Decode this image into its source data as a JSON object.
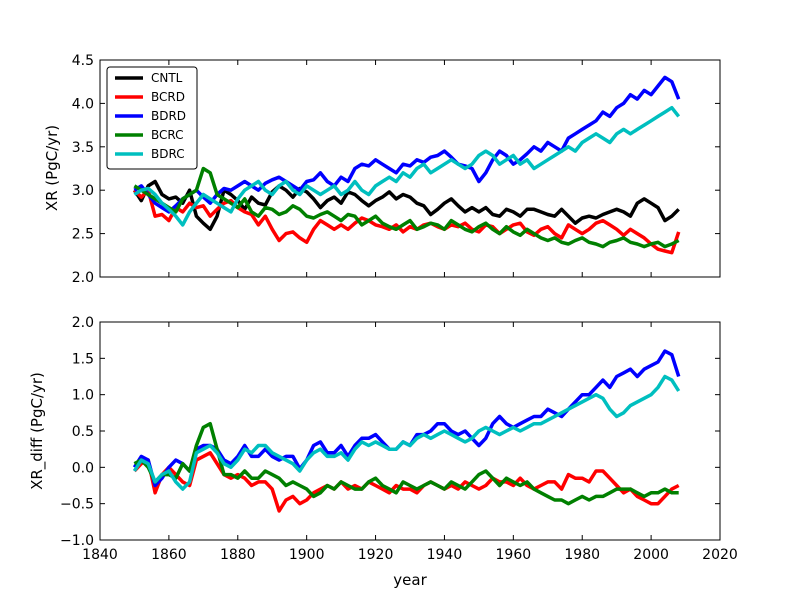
{
  "chart_data": [
    {
      "type": "line",
      "ylabel": "XR (PgC/yr)",
      "xlabel": "",
      "xlim": [
        1840,
        2020
      ],
      "ylim": [
        2.0,
        4.5
      ],
      "yticks": [
        2.0,
        2.5,
        3.0,
        3.5,
        4.0,
        4.5
      ],
      "ytick_labels": [
        "2.0",
        "2.5",
        "3.0",
        "3.5",
        "4.0",
        "4.5"
      ],
      "xticks": [],
      "xtick_labels": [],
      "legend": {
        "position": "top-left",
        "entries": [
          "CNTL",
          "BCRD",
          "BDRD",
          "BCRC",
          "BDRC"
        ]
      },
      "x_start": 1850,
      "x_step": 2,
      "series": [
        {
          "name": "CNTL",
          "color": "#000000",
          "values": [
            3.0,
            2.88,
            3.05,
            3.1,
            2.95,
            2.9,
            2.92,
            2.85,
            3.0,
            2.7,
            2.62,
            2.55,
            2.7,
            3.0,
            2.95,
            2.88,
            2.78,
            2.92,
            2.85,
            2.83,
            2.98,
            3.05,
            3.0,
            2.92,
            3.02,
            2.98,
            2.9,
            2.8,
            2.88,
            2.92,
            2.85,
            2.98,
            2.95,
            2.88,
            2.82,
            2.88,
            2.92,
            2.98,
            2.9,
            2.95,
            2.92,
            2.85,
            2.82,
            2.72,
            2.78,
            2.85,
            2.9,
            2.82,
            2.75,
            2.8,
            2.75,
            2.8,
            2.72,
            2.7,
            2.78,
            2.75,
            2.7,
            2.78,
            2.78,
            2.75,
            2.72,
            2.7,
            2.78,
            2.7,
            2.62,
            2.68,
            2.7,
            2.68,
            2.72,
            2.75,
            2.78,
            2.75,
            2.7,
            2.85,
            2.9,
            2.85,
            2.8,
            2.65,
            2.7,
            2.78
          ]
        },
        {
          "name": "BCRD",
          "color": "#ff0000",
          "values": [
            3.0,
            2.92,
            3.0,
            2.7,
            2.72,
            2.65,
            2.8,
            2.75,
            2.85,
            2.8,
            2.82,
            2.7,
            2.78,
            2.85,
            2.88,
            2.8,
            2.75,
            2.72,
            2.6,
            2.7,
            2.55,
            2.42,
            2.5,
            2.52,
            2.45,
            2.4,
            2.55,
            2.65,
            2.6,
            2.55,
            2.6,
            2.55,
            2.62,
            2.68,
            2.65,
            2.6,
            2.58,
            2.55,
            2.6,
            2.52,
            2.58,
            2.55,
            2.6,
            2.62,
            2.58,
            2.55,
            2.6,
            2.58,
            2.62,
            2.55,
            2.52,
            2.6,
            2.58,
            2.5,
            2.55,
            2.6,
            2.62,
            2.52,
            2.48,
            2.55,
            2.58,
            2.5,
            2.45,
            2.6,
            2.55,
            2.5,
            2.55,
            2.62,
            2.65,
            2.6,
            2.55,
            2.48,
            2.55,
            2.5,
            2.45,
            2.38,
            2.32,
            2.3,
            2.28,
            2.52
          ]
        },
        {
          "name": "BDRD",
          "color": "#0000ff",
          "values": [
            3.0,
            3.05,
            2.95,
            2.85,
            2.8,
            2.75,
            2.82,
            2.9,
            2.95,
            3.0,
            2.92,
            2.85,
            2.95,
            3.02,
            3.0,
            3.05,
            3.1,
            3.05,
            3.0,
            3.08,
            3.12,
            3.15,
            3.1,
            3.05,
            3.0,
            3.1,
            3.12,
            3.2,
            3.1,
            3.05,
            3.15,
            3.1,
            3.25,
            3.3,
            3.28,
            3.35,
            3.3,
            3.25,
            3.2,
            3.3,
            3.28,
            3.35,
            3.32,
            3.38,
            3.4,
            3.45,
            3.38,
            3.3,
            3.28,
            3.25,
            3.1,
            3.2,
            3.35,
            3.45,
            3.4,
            3.3,
            3.35,
            3.42,
            3.5,
            3.45,
            3.55,
            3.5,
            3.45,
            3.6,
            3.65,
            3.7,
            3.75,
            3.8,
            3.9,
            3.85,
            3.95,
            4.0,
            4.1,
            4.05,
            4.15,
            4.1,
            4.2,
            4.3,
            4.25,
            4.05
          ]
        },
        {
          "name": "BCRC",
          "color": "#008000",
          "values": [
            3.05,
            3.0,
            2.95,
            2.9,
            2.85,
            2.8,
            2.75,
            2.9,
            2.95,
            3.0,
            3.25,
            3.2,
            2.95,
            2.9,
            2.85,
            2.8,
            2.9,
            2.75,
            2.7,
            2.8,
            2.78,
            2.72,
            2.75,
            2.82,
            2.78,
            2.7,
            2.68,
            2.72,
            2.75,
            2.7,
            2.65,
            2.72,
            2.7,
            2.6,
            2.65,
            2.7,
            2.62,
            2.58,
            2.55,
            2.6,
            2.65,
            2.55,
            2.58,
            2.62,
            2.6,
            2.55,
            2.65,
            2.6,
            2.55,
            2.52,
            2.58,
            2.62,
            2.55,
            2.5,
            2.58,
            2.52,
            2.48,
            2.55,
            2.5,
            2.45,
            2.42,
            2.45,
            2.4,
            2.38,
            2.42,
            2.45,
            2.4,
            2.38,
            2.35,
            2.4,
            2.42,
            2.45,
            2.4,
            2.38,
            2.35,
            2.38,
            2.4,
            2.35,
            2.38,
            2.42
          ]
        },
        {
          "name": "BDRC",
          "color": "#00bfbf",
          "values": [
            2.95,
            3.0,
            3.02,
            2.95,
            2.85,
            2.78,
            2.7,
            2.6,
            2.75,
            2.85,
            2.95,
            2.9,
            2.85,
            2.8,
            2.75,
            2.9,
            3.0,
            3.05,
            3.1,
            3.0,
            2.95,
            3.05,
            3.1,
            3.0,
            2.95,
            3.05,
            3.0,
            2.95,
            3.0,
            3.05,
            2.95,
            3.0,
            3.1,
            3.0,
            2.95,
            3.05,
            3.1,
            3.15,
            3.1,
            3.2,
            3.15,
            3.25,
            3.3,
            3.2,
            3.25,
            3.3,
            3.35,
            3.3,
            3.25,
            3.3,
            3.4,
            3.45,
            3.4,
            3.3,
            3.35,
            3.4,
            3.3,
            3.35,
            3.25,
            3.3,
            3.35,
            3.4,
            3.45,
            3.5,
            3.45,
            3.55,
            3.6,
            3.65,
            3.6,
            3.55,
            3.65,
            3.7,
            3.65,
            3.7,
            3.75,
            3.8,
            3.85,
            3.9,
            3.95,
            3.85
          ]
        }
      ]
    },
    {
      "type": "line",
      "ylabel": "XR_diff (PgC/yr)",
      "xlabel": "year",
      "xlim": [
        1840,
        2020
      ],
      "ylim": [
        -1.0,
        2.0
      ],
      "yticks": [
        -1.0,
        -0.5,
        0.0,
        0.5,
        1.0,
        1.5,
        2.0
      ],
      "ytick_labels": [
        "−1.0",
        "−0.5",
        "0.0",
        "0.5",
        "1.0",
        "1.5",
        "2.0"
      ],
      "xticks": [
        1840,
        1860,
        1880,
        1900,
        1920,
        1940,
        1960,
        1980,
        2000,
        2020
      ],
      "xtick_labels": [
        "1840",
        "1860",
        "1880",
        "1900",
        "1920",
        "1940",
        "1960",
        "1980",
        "2000",
        "2020"
      ],
      "x_start": 1850,
      "x_step": 2,
      "series": [
        {
          "name": "BCRD",
          "color": "#ff0000",
          "values": [
            -0.05,
            0.05,
            0.1,
            -0.35,
            -0.1,
            0.0,
            -0.1,
            -0.2,
            -0.25,
            0.1,
            0.15,
            0.2,
            0.05,
            -0.1,
            -0.15,
            -0.1,
            -0.15,
            -0.25,
            -0.2,
            -0.2,
            -0.3,
            -0.6,
            -0.45,
            -0.4,
            -0.5,
            -0.45,
            -0.35,
            -0.3,
            -0.25,
            -0.3,
            -0.2,
            -0.3,
            -0.25,
            -0.3,
            -0.2,
            -0.25,
            -0.3,
            -0.35,
            -0.25,
            -0.3,
            -0.3,
            -0.35,
            -0.25,
            -0.2,
            -0.25,
            -0.3,
            -0.25,
            -0.3,
            -0.2,
            -0.25,
            -0.3,
            -0.25,
            -0.15,
            -0.2,
            -0.2,
            -0.25,
            -0.15,
            -0.25,
            -0.3,
            -0.25,
            -0.2,
            -0.2,
            -0.3,
            -0.1,
            -0.15,
            -0.15,
            -0.2,
            -0.05,
            -0.05,
            -0.15,
            -0.25,
            -0.35,
            -0.3,
            -0.4,
            -0.45,
            -0.5,
            -0.5,
            -0.4,
            -0.3,
            -0.25
          ]
        },
        {
          "name": "BDRD",
          "color": "#0000ff",
          "values": [
            0.0,
            0.15,
            0.1,
            -0.25,
            -0.15,
            0.0,
            0.1,
            0.05,
            -0.05,
            0.25,
            0.3,
            0.3,
            0.25,
            0.1,
            0.05,
            0.15,
            0.3,
            0.15,
            0.15,
            0.25,
            0.15,
            0.1,
            0.15,
            0.15,
            -0.02,
            0.1,
            0.3,
            0.35,
            0.2,
            0.2,
            0.3,
            0.15,
            0.3,
            0.4,
            0.4,
            0.45,
            0.35,
            0.25,
            0.25,
            0.35,
            0.3,
            0.45,
            0.45,
            0.5,
            0.6,
            0.6,
            0.5,
            0.45,
            0.5,
            0.4,
            0.3,
            0.4,
            0.6,
            0.7,
            0.6,
            0.55,
            0.6,
            0.65,
            0.7,
            0.7,
            0.8,
            0.75,
            0.7,
            0.8,
            0.9,
            1.0,
            1.0,
            1.1,
            1.2,
            1.1,
            1.25,
            1.3,
            1.35,
            1.25,
            1.35,
            1.4,
            1.45,
            1.6,
            1.55,
            1.25
          ]
        },
        {
          "name": "BCRC",
          "color": "#008000",
          "values": [
            0.05,
            0.1,
            0.0,
            -0.2,
            -0.1,
            -0.1,
            -0.15,
            0.05,
            -0.05,
            0.3,
            0.55,
            0.6,
            0.25,
            -0.1,
            -0.1,
            -0.15,
            -0.05,
            -0.15,
            -0.15,
            -0.05,
            -0.1,
            -0.15,
            -0.25,
            -0.2,
            -0.25,
            -0.3,
            -0.4,
            -0.35,
            -0.25,
            -0.3,
            -0.2,
            -0.25,
            -0.3,
            -0.3,
            -0.2,
            -0.15,
            -0.25,
            -0.3,
            -0.35,
            -0.2,
            -0.25,
            -0.3,
            -0.25,
            -0.2,
            -0.25,
            -0.3,
            -0.2,
            -0.25,
            -0.3,
            -0.2,
            -0.1,
            -0.05,
            -0.15,
            -0.25,
            -0.15,
            -0.2,
            -0.25,
            -0.2,
            -0.3,
            -0.35,
            -0.4,
            -0.45,
            -0.45,
            -0.5,
            -0.45,
            -0.4,
            -0.45,
            -0.4,
            -0.4,
            -0.35,
            -0.3,
            -0.3,
            -0.3,
            -0.35,
            -0.4,
            -0.35,
            -0.35,
            -0.3,
            -0.35,
            -0.35
          ]
        },
        {
          "name": "BDRC",
          "color": "#00bfbf",
          "values": [
            -0.05,
            0.1,
            0.05,
            -0.2,
            -0.1,
            -0.05,
            -0.2,
            -0.3,
            -0.2,
            0.2,
            0.25,
            0.3,
            0.2,
            0.05,
            0.0,
            0.1,
            0.25,
            0.2,
            0.3,
            0.3,
            0.2,
            0.15,
            0.1,
            0.05,
            -0.05,
            0.1,
            0.2,
            0.25,
            0.15,
            0.15,
            0.2,
            0.1,
            0.25,
            0.35,
            0.3,
            0.35,
            0.3,
            0.25,
            0.25,
            0.35,
            0.3,
            0.4,
            0.45,
            0.4,
            0.45,
            0.5,
            0.45,
            0.4,
            0.35,
            0.4,
            0.5,
            0.55,
            0.5,
            0.45,
            0.5,
            0.55,
            0.5,
            0.55,
            0.6,
            0.6,
            0.65,
            0.7,
            0.75,
            0.8,
            0.85,
            0.9,
            0.95,
            1.0,
            0.95,
            0.8,
            0.7,
            0.75,
            0.85,
            0.9,
            0.95,
            1.0,
            1.1,
            1.25,
            1.2,
            1.05
          ]
        }
      ]
    }
  ]
}
